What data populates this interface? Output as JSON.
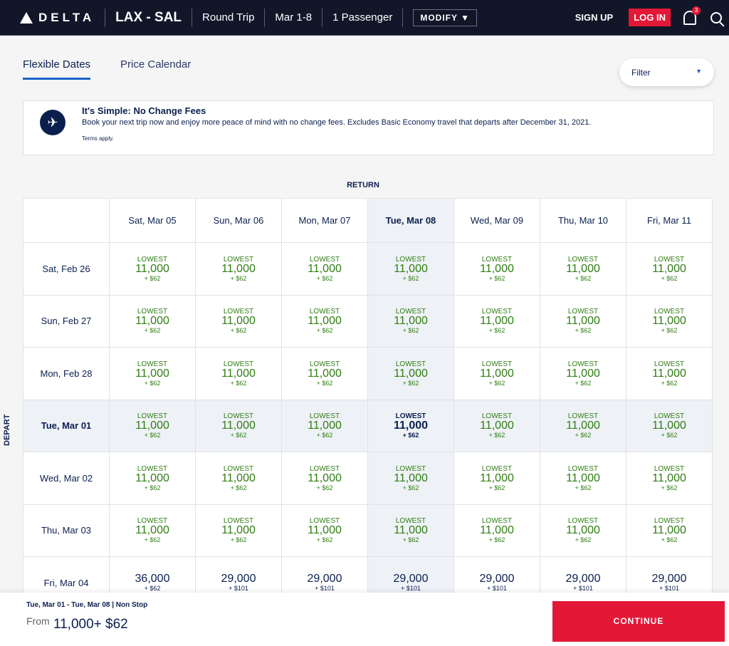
{
  "header": {
    "logo": "DELTA",
    "route": "LAX - SAL",
    "trip_type": "Round Trip",
    "dates": "Mar 1-8",
    "passengers": "1 Passenger",
    "modify": "MODIFY",
    "sign_up": "SIGN UP",
    "log_in": "LOG IN",
    "notifications": "3"
  },
  "tabs": [
    {
      "label": "Flexible Dates",
      "active": true
    },
    {
      "label": "Price Calendar",
      "active": false
    }
  ],
  "filter": {
    "label": "Filter"
  },
  "banner": {
    "title": "It's Simple: No Change Fees",
    "text": "Book your next trip now and enjoy more peace of mind with no change fees. Excludes Basic Economy travel that departs after December 31, 2021.",
    "terms": "Terms apply."
  },
  "grid": {
    "return_label": "RETURN",
    "depart_label": "DEPART",
    "return_dates": [
      "Sat, Mar 05",
      "Sun, Mar 06",
      "Mon, Mar 07",
      "Tue, Mar 08",
      "Wed, Mar 09",
      "Thu, Mar 10",
      "Fri, Mar 11"
    ],
    "selected_return": 3,
    "selected_depart": 3,
    "rows": [
      {
        "depart": "Sat, Feb 26",
        "cells": [
          [
            "LOWEST",
            "11,000",
            "+ $62"
          ],
          [
            "LOWEST",
            "11,000",
            "+ $62"
          ],
          [
            "LOWEST",
            "11,000",
            "+ $62"
          ],
          [
            "LOWEST",
            "11,000",
            "+ $62"
          ],
          [
            "LOWEST",
            "11,000",
            "+ $62"
          ],
          [
            "LOWEST",
            "11,000",
            "+ $62"
          ],
          [
            "LOWEST",
            "11,000",
            "+ $62"
          ]
        ]
      },
      {
        "depart": "Sun, Feb 27",
        "cells": [
          [
            "LOWEST",
            "11,000",
            "+ $62"
          ],
          [
            "LOWEST",
            "11,000",
            "+ $62"
          ],
          [
            "LOWEST",
            "11,000",
            "+ $62"
          ],
          [
            "LOWEST",
            "11,000",
            "+ $62"
          ],
          [
            "LOWEST",
            "11,000",
            "+ $62"
          ],
          [
            "LOWEST",
            "11,000",
            "+ $62"
          ],
          [
            "LOWEST",
            "11,000",
            "+ $62"
          ]
        ]
      },
      {
        "depart": "Mon, Feb 28",
        "cells": [
          [
            "LOWEST",
            "11,000",
            "+ $62"
          ],
          [
            "LOWEST",
            "11,000",
            "+ $62"
          ],
          [
            "LOWEST",
            "11,000",
            "+ $62"
          ],
          [
            "LOWEST",
            "11,000",
            "+ $62"
          ],
          [
            "LOWEST",
            "11,000",
            "+ $62"
          ],
          [
            "LOWEST",
            "11,000",
            "+ $62"
          ],
          [
            "LOWEST",
            "11,000",
            "+ $62"
          ]
        ]
      },
      {
        "depart": "Tue, Mar 01",
        "cells": [
          [
            "LOWEST",
            "11,000",
            "+ $62"
          ],
          [
            "LOWEST",
            "11,000",
            "+ $62"
          ],
          [
            "LOWEST",
            "11,000",
            "+ $62"
          ],
          [
            "LOWEST",
            "11,000",
            "+ $62"
          ],
          [
            "LOWEST",
            "11,000",
            "+ $62"
          ],
          [
            "LOWEST",
            "11,000",
            "+ $62"
          ],
          [
            "LOWEST",
            "11,000",
            "+ $62"
          ]
        ]
      },
      {
        "depart": "Wed, Mar 02",
        "cells": [
          [
            "LOWEST",
            "11,000",
            "+ $62"
          ],
          [
            "LOWEST",
            "11,000",
            "+ $62"
          ],
          [
            "LOWEST",
            "11,000",
            "+ $62"
          ],
          [
            "LOWEST",
            "11,000",
            "+ $62"
          ],
          [
            "LOWEST",
            "11,000",
            "+ $62"
          ],
          [
            "LOWEST",
            "11,000",
            "+ $62"
          ],
          [
            "LOWEST",
            "11,000",
            "+ $62"
          ]
        ]
      },
      {
        "depart": "Thu, Mar 03",
        "cells": [
          [
            "LOWEST",
            "11,000",
            "+ $62"
          ],
          [
            "LOWEST",
            "11,000",
            "+ $62"
          ],
          [
            "LOWEST",
            "11,000",
            "+ $62"
          ],
          [
            "LOWEST",
            "11,000",
            "+ $62"
          ],
          [
            "LOWEST",
            "11,000",
            "+ $62"
          ],
          [
            "LOWEST",
            "11,000",
            "+ $62"
          ],
          [
            "LOWEST",
            "11,000",
            "+ $62"
          ]
        ]
      },
      {
        "depart": "Fri, Mar 04",
        "cells": [
          [
            "",
            "36,000",
            "+ $62"
          ],
          [
            "",
            "29,000",
            "+ $101"
          ],
          [
            "",
            "29,000",
            "+ $101"
          ],
          [
            "",
            "29,000",
            "+ $101"
          ],
          [
            "",
            "29,000",
            "+ $101"
          ],
          [
            "",
            "29,000",
            "+ $101"
          ],
          [
            "",
            "29,000",
            "+ $101"
          ]
        ]
      }
    ]
  },
  "footer": {
    "summary": "Tue, Mar 01  - Tue, Mar 08   |   Non Stop",
    "from_label": "From",
    "price": "11,000+ $62",
    "continue": "CONTINUE"
  }
}
